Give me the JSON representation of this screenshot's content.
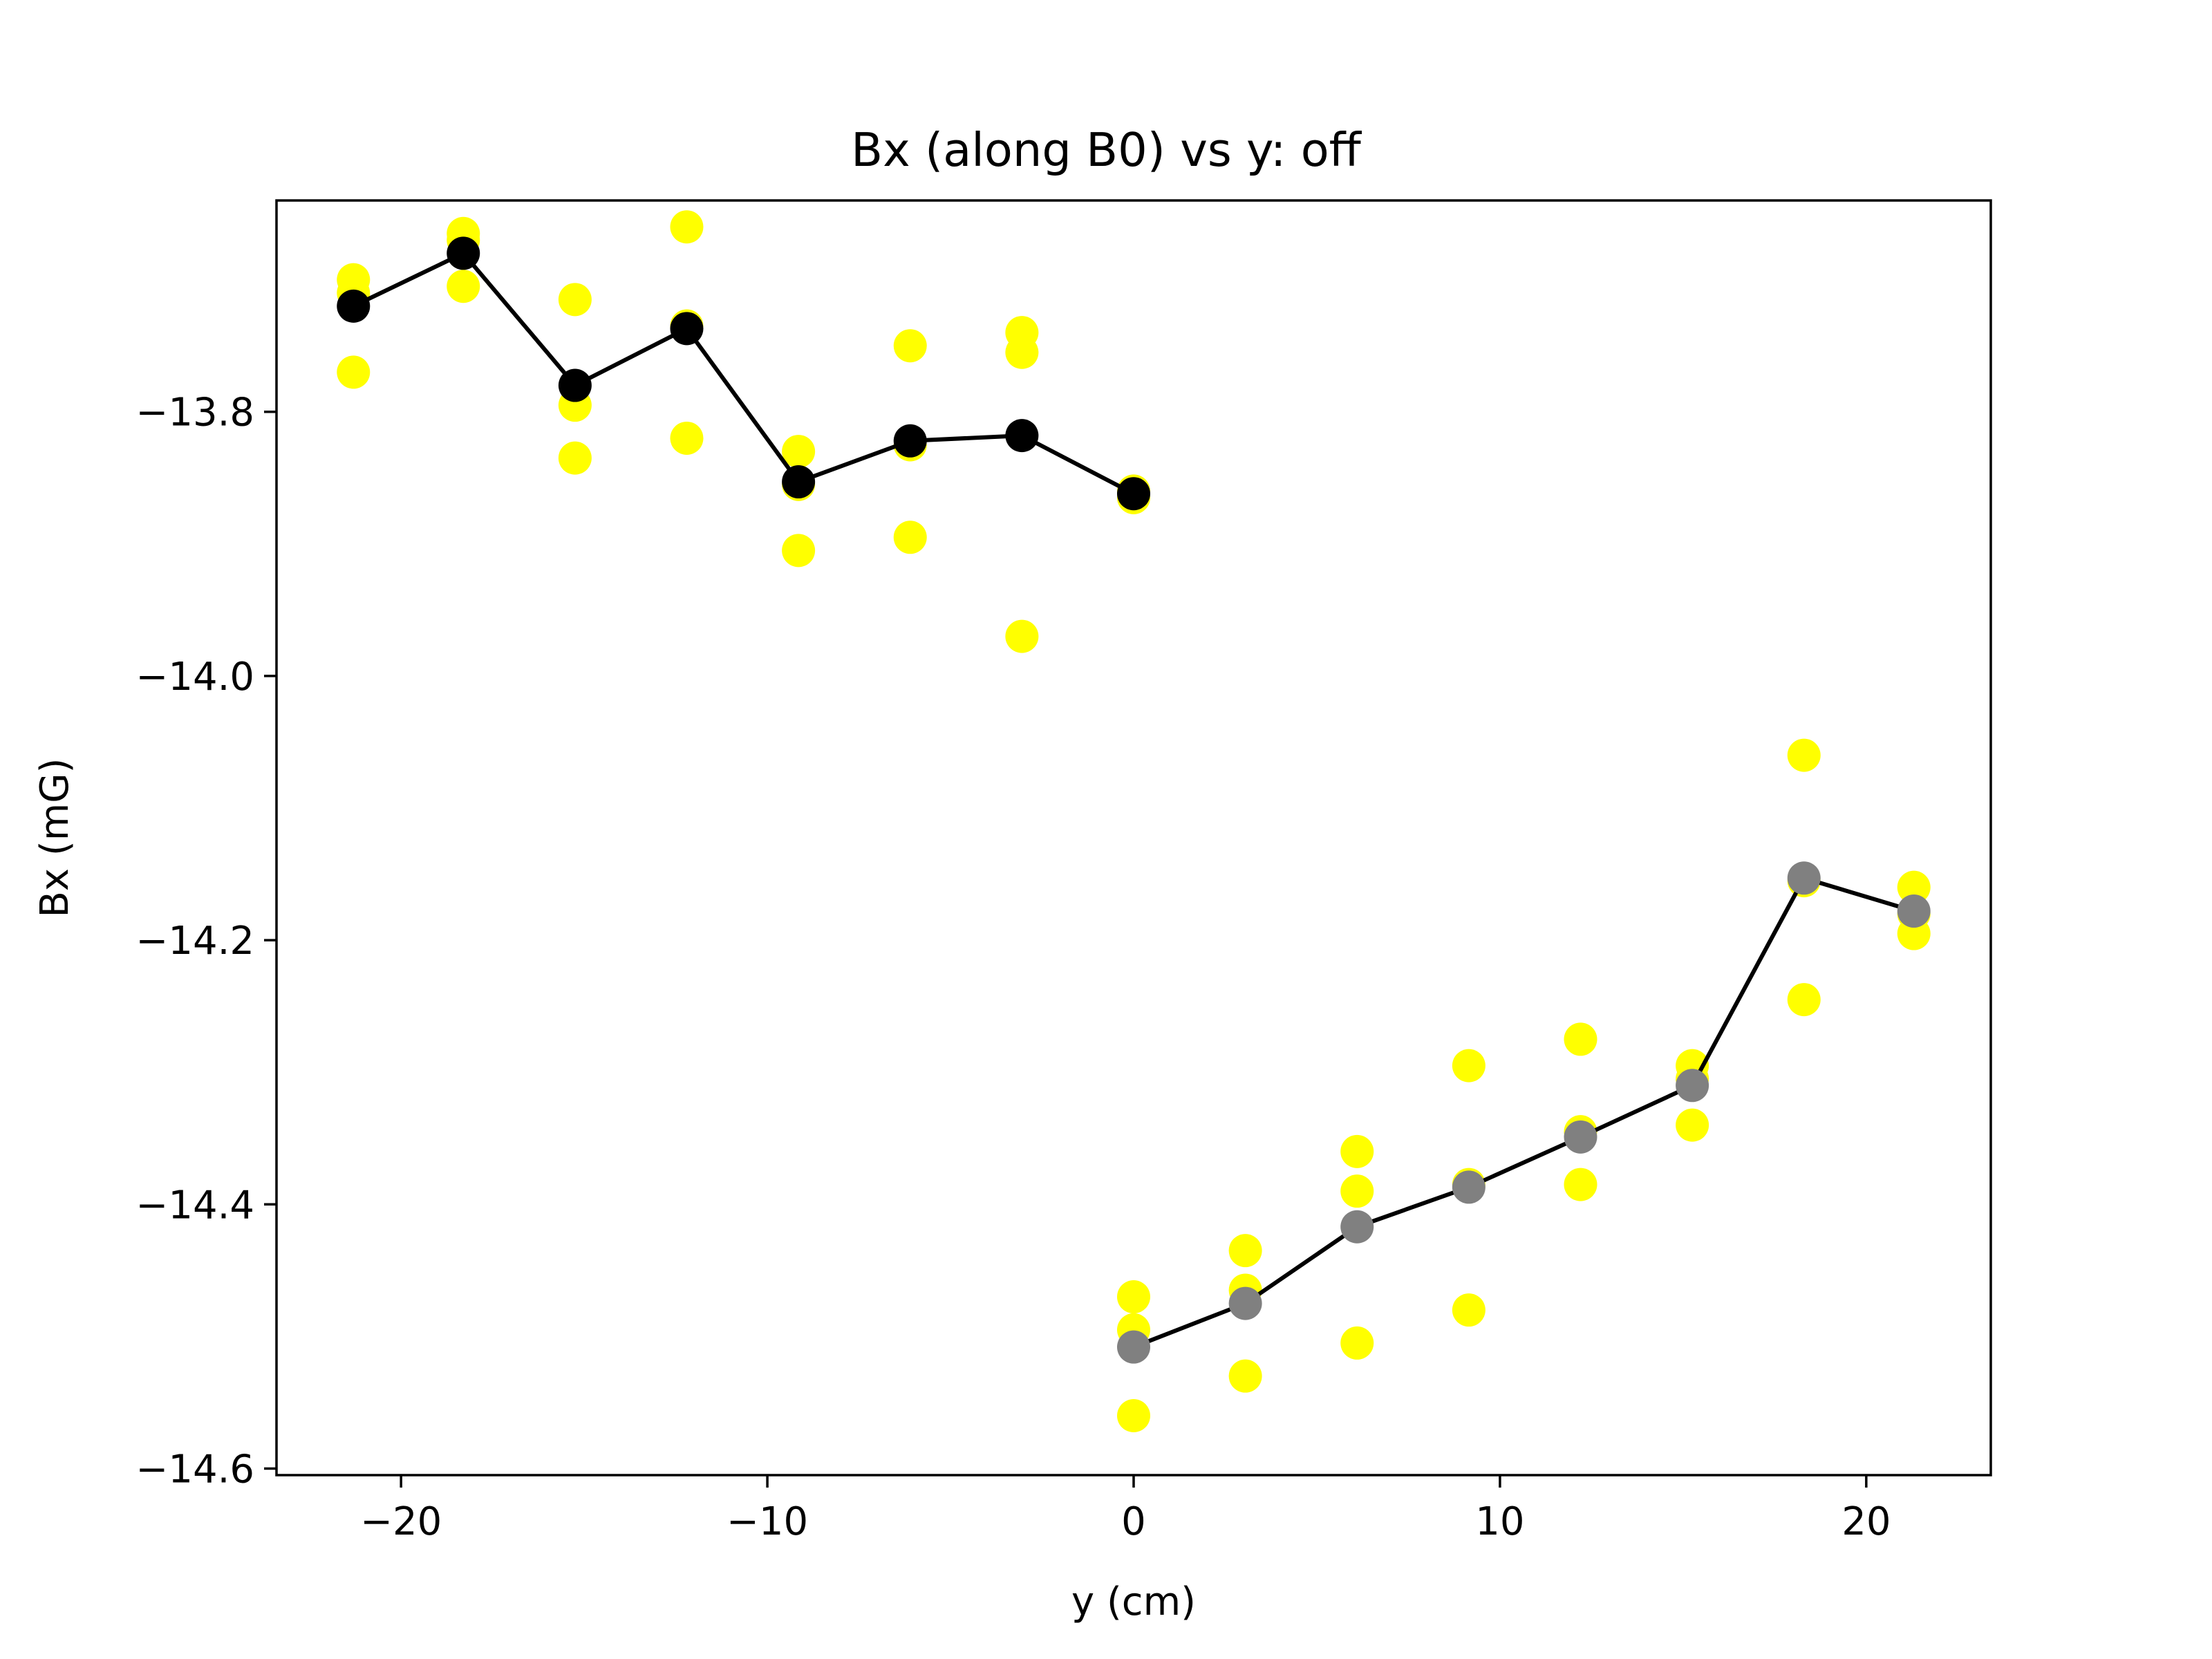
{
  "chart_data": {
    "type": "scatter",
    "title": "Bx (along B0) vs y: off",
    "xlabel": "y (cm)",
    "ylabel": "Bx (mG)",
    "xlim": [
      -23.4,
      23.4
    ],
    "ylim": [
      -14.605,
      -13.64
    ],
    "xticks": [
      -20,
      -10,
      0,
      10,
      20
    ],
    "yticks": [
      -14.6,
      -14.4,
      -14.2,
      -14.0,
      -13.8
    ],
    "xtick_labels": [
      "−20",
      "−10",
      "0",
      "10",
      "20"
    ],
    "ytick_labels": [
      "−14.6",
      "−14.4",
      "−14.2",
      "−14.0",
      "−13.8"
    ],
    "grid": false,
    "series": [
      {
        "color": "#ffff00",
        "kind": "points",
        "points": [
          [
            -21.3,
            -13.7
          ],
          [
            -21.3,
            -13.71
          ],
          [
            -21.3,
            -13.77
          ],
          [
            -18.3,
            -13.665
          ],
          [
            -18.3,
            -13.67
          ],
          [
            -18.3,
            -13.705
          ],
          [
            -15.25,
            -13.715
          ],
          [
            -15.25,
            -13.795
          ],
          [
            -15.25,
            -13.835
          ],
          [
            -12.2,
            -13.66
          ],
          [
            -12.2,
            -13.735
          ],
          [
            -12.2,
            -13.82
          ],
          [
            -9.15,
            -13.83
          ],
          [
            -9.15,
            -13.855
          ],
          [
            -9.15,
            -13.905
          ],
          [
            -6.1,
            -13.75
          ],
          [
            -6.1,
            -13.825
          ],
          [
            -6.1,
            -13.895
          ],
          [
            -3.05,
            -13.74
          ],
          [
            -3.05,
            -13.755
          ],
          [
            -3.05,
            -13.97
          ],
          [
            0,
            -13.86
          ],
          [
            0,
            -13.865
          ],
          [
            0,
            -14.47
          ],
          [
            0,
            -14.495
          ],
          [
            0,
            -14.56
          ],
          [
            3.05,
            -14.435
          ],
          [
            3.05,
            -14.465
          ],
          [
            3.05,
            -14.53
          ],
          [
            6.1,
            -14.36
          ],
          [
            6.1,
            -14.39
          ],
          [
            6.1,
            -14.505
          ],
          [
            9.15,
            -14.295
          ],
          [
            9.15,
            -14.385
          ],
          [
            9.15,
            -14.48
          ],
          [
            12.2,
            -14.275
          ],
          [
            12.2,
            -14.345
          ],
          [
            12.2,
            -14.385
          ],
          [
            15.25,
            -14.295
          ],
          [
            15.25,
            -14.305
          ],
          [
            15.25,
            -14.34
          ],
          [
            18.3,
            -14.06
          ],
          [
            18.3,
            -14.155
          ],
          [
            18.3,
            -14.245
          ],
          [
            21.3,
            -14.16
          ],
          [
            21.3,
            -14.18
          ],
          [
            21.3,
            -14.195
          ]
        ]
      },
      {
        "color": "#000000",
        "kind": "line+markers",
        "x": [
          -21.3,
          -18.3,
          -15.25,
          -12.2,
          -9.15,
          -6.1,
          -3.05,
          0
        ],
        "y": [
          -13.72,
          -13.68,
          -13.78,
          -13.737,
          -13.853,
          -13.822,
          -13.818,
          -13.862
        ]
      },
      {
        "color": "#808080",
        "line_color": "#000000",
        "kind": "line+markers",
        "x": [
          0,
          3.05,
          6.1,
          9.15,
          12.2,
          15.25,
          18.3,
          21.3
        ],
        "y": [
          -14.508,
          -14.475,
          -14.417,
          -14.387,
          -14.349,
          -14.31,
          -14.153,
          -14.178
        ]
      }
    ]
  }
}
